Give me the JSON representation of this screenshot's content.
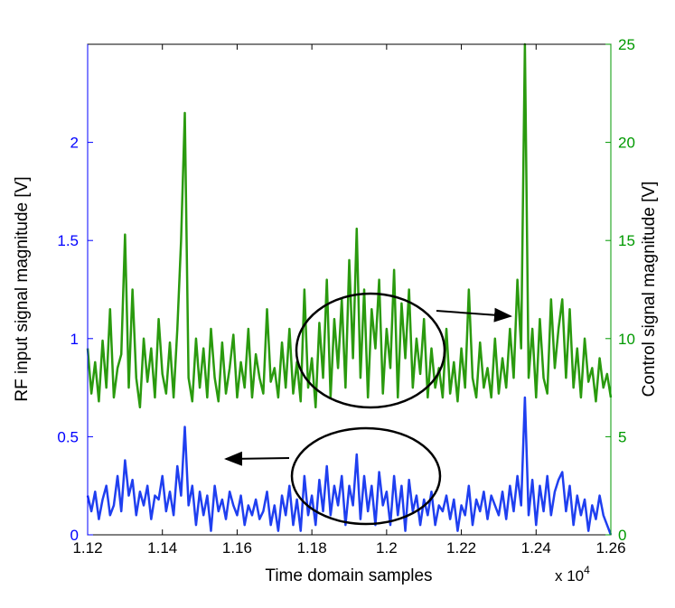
{
  "chart_data": {
    "type": "line",
    "xlabel": "Time domain samples",
    "ylabel": "RF input signal magnitude [V]",
    "y2label": "Control signal magnitude [V]",
    "x_multiplier": "x 10",
    "x_multiplier_exponent": "4",
    "xlim": [
      11200,
      12600
    ],
    "xticks": [
      {
        "value": 11200,
        "label": "1.12"
      },
      {
        "value": 11400,
        "label": "1.14"
      },
      {
        "value": 11600,
        "label": "1.16"
      },
      {
        "value": 11800,
        "label": "1.18"
      },
      {
        "value": 12000,
        "label": "1.2"
      },
      {
        "value": 12200,
        "label": "1.22"
      },
      {
        "value": 12400,
        "label": "1.24"
      },
      {
        "value": 12600,
        "label": "1.26"
      }
    ],
    "ylim": [
      0,
      2.5
    ],
    "yticks": [
      0,
      0.5,
      1,
      1.5,
      2
    ],
    "y2lim": [
      0,
      25
    ],
    "y2ticks": [
      0,
      5,
      10,
      15,
      20,
      25
    ],
    "yaxis_color": "#0000ff",
    "y2axis_color": "#009900",
    "x": [
      11200,
      11210,
      11220,
      11230,
      11240,
      11250,
      11260,
      11270,
      11280,
      11290,
      11300,
      11310,
      11320,
      11330,
      11340,
      11350,
      11360,
      11370,
      11380,
      11390,
      11400,
      11410,
      11420,
      11430,
      11440,
      11450,
      11460,
      11470,
      11480,
      11490,
      11500,
      11510,
      11520,
      11530,
      11540,
      11550,
      11560,
      11570,
      11580,
      11590,
      11600,
      11610,
      11620,
      11630,
      11640,
      11650,
      11660,
      11670,
      11680,
      11690,
      11700,
      11710,
      11720,
      11730,
      11740,
      11750,
      11760,
      11770,
      11780,
      11790,
      11800,
      11810,
      11820,
      11830,
      11840,
      11850,
      11860,
      11870,
      11880,
      11890,
      11900,
      11910,
      11920,
      11930,
      11940,
      11950,
      11960,
      11970,
      11980,
      11990,
      12000,
      12010,
      12020,
      12030,
      12040,
      12050,
      12060,
      12070,
      12080,
      12090,
      12100,
      12110,
      12120,
      12130,
      12140,
      12150,
      12160,
      12170,
      12180,
      12190,
      12200,
      12210,
      12220,
      12230,
      12240,
      12250,
      12260,
      12270,
      12280,
      12290,
      12300,
      12310,
      12320,
      12330,
      12340,
      12350,
      12360,
      12370,
      12380,
      12390,
      12400,
      12410,
      12420,
      12430,
      12440,
      12450,
      12460,
      12470,
      12480,
      12490,
      12500,
      12510,
      12520,
      12530,
      12540,
      12550,
      12560,
      12570,
      12580,
      12590,
      12600
    ],
    "series": [
      {
        "axis": "y2",
        "color": "#2a9a0e",
        "values": [
          9.5,
          7.2,
          8.8,
          6.8,
          9.9,
          7.5,
          11.5,
          7.0,
          8.5,
          9.2,
          15.3,
          7.5,
          12.5,
          8.0,
          6.5,
          10.0,
          7.8,
          9.5,
          7.0,
          11.0,
          8.2,
          7.2,
          9.8,
          7.0,
          10.5,
          15.0,
          21.5,
          8.0,
          6.8,
          10.0,
          7.5,
          9.5,
          7.0,
          10.5,
          8.0,
          6.8,
          9.8,
          7.2,
          8.5,
          10.2,
          7.0,
          8.8,
          7.5,
          10.5,
          7.0,
          9.2,
          8.0,
          7.2,
          11.5,
          7.8,
          8.5,
          7.0,
          9.8,
          7.5,
          10.5,
          7.2,
          8.8,
          6.8,
          12.5,
          7.5,
          9.0,
          6.5,
          10.8,
          8.0,
          13.0,
          7.0,
          11.0,
          8.5,
          12.0,
          7.5,
          14.0,
          9.0,
          15.6,
          8.0,
          12.5,
          7.0,
          11.5,
          9.5,
          13.0,
          7.2,
          10.5,
          8.5,
          13.5,
          7.0,
          11.8,
          9.0,
          12.5,
          7.5,
          10.0,
          8.2,
          11.0,
          7.0,
          9.5,
          7.5,
          8.5,
          7.0,
          10.5,
          7.2,
          8.8,
          6.8,
          9.5,
          7.5,
          12.5,
          8.0,
          7.0,
          9.8,
          7.5,
          8.5,
          7.0,
          10.0,
          7.2,
          9.0,
          7.5,
          10.5,
          8.0,
          13.0,
          9.5,
          25.0,
          8.0,
          10.5,
          7.0,
          11.0,
          8.0,
          7.2,
          12.0,
          8.5,
          10.5,
          12.0,
          8.0,
          11.5,
          7.5,
          9.5,
          7.0,
          10.0,
          7.8,
          8.5,
          6.8,
          9.0,
          7.5,
          8.2,
          7.0
        ]
      },
      {
        "axis": "y",
        "color": "#1f3ff0",
        "values": [
          0.2,
          0.12,
          0.22,
          0.08,
          0.18,
          0.25,
          0.1,
          0.15,
          0.3,
          0.12,
          0.38,
          0.2,
          0.28,
          0.1,
          0.22,
          0.15,
          0.25,
          0.08,
          0.2,
          0.18,
          0.3,
          0.12,
          0.22,
          0.1,
          0.35,
          0.2,
          0.55,
          0.15,
          0.25,
          0.05,
          0.22,
          0.1,
          0.2,
          0.02,
          0.25,
          0.12,
          0.18,
          0.08,
          0.22,
          0.15,
          0.1,
          0.2,
          0.05,
          0.15,
          0.1,
          0.18,
          0.08,
          0.12,
          0.22,
          0.05,
          0.15,
          0.02,
          0.2,
          0.1,
          0.25,
          0.05,
          0.18,
          0.02,
          0.3,
          0.1,
          0.2,
          0.05,
          0.28,
          0.12,
          0.35,
          0.1,
          0.25,
          0.15,
          0.3,
          0.05,
          0.25,
          0.15,
          0.41,
          0.08,
          0.3,
          0.12,
          0.25,
          0.05,
          0.32,
          0.15,
          0.22,
          0.05,
          0.3,
          0.1,
          0.25,
          0.02,
          0.28,
          0.12,
          0.2,
          0.05,
          0.18,
          0.1,
          0.22,
          0.05,
          0.15,
          0.12,
          0.2,
          0.08,
          0.18,
          0.02,
          0.15,
          0.1,
          0.25,
          0.05,
          0.18,
          0.12,
          0.22,
          0.08,
          0.2,
          0.15,
          0.1,
          0.22,
          0.08,
          0.25,
          0.12,
          0.3,
          0.15,
          0.7,
          0.1,
          0.28,
          0.05,
          0.25,
          0.12,
          0.3,
          0.1,
          0.22,
          0.28,
          0.32,
          0.12,
          0.25,
          0.05,
          0.2,
          0.1,
          0.18,
          0.02,
          0.15,
          0.08,
          0.2,
          0.1,
          0.05,
          0.0
        ]
      }
    ]
  }
}
